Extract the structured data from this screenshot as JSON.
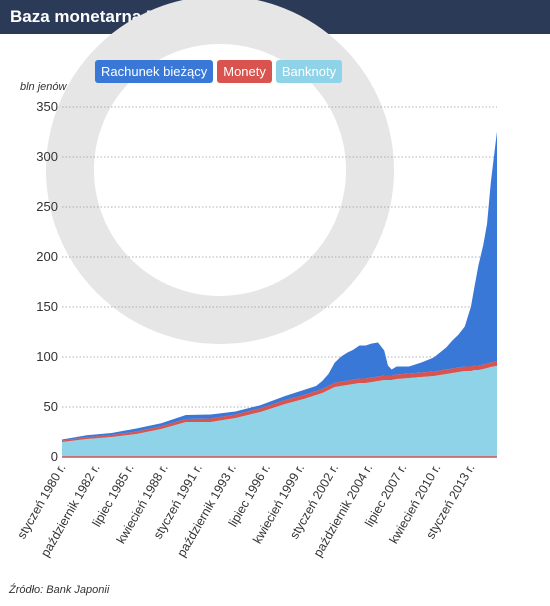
{
  "title": "Baza monetarna Banku Japonii",
  "source": "Źródło: Bank Japonii",
  "legend": [
    {
      "label": "Rachunek bieżący",
      "color": "#3a78d8"
    },
    {
      "label": "Monety",
      "color": "#d9534f"
    },
    {
      "label": "Banknoty",
      "color": "#8fd3e8"
    }
  ],
  "chart_data": {
    "type": "area",
    "stacked": true,
    "ylabel": "bln jenów",
    "ylim": [
      0,
      350
    ],
    "yticks": [
      0,
      50,
      100,
      150,
      200,
      250,
      300,
      350
    ],
    "grid": true,
    "legend_position": "top",
    "xlim": [
      1980.0,
      2015.1
    ],
    "xtick_positions": [
      1980.0,
      1982.75,
      1985.5,
      1988.25,
      1991.0,
      1993.75,
      1996.5,
      1999.25,
      2002.0,
      2004.75,
      2007.5,
      2010.25,
      2013.0
    ],
    "xtick_labels": [
      "styczeń 1980 r.",
      "październik 1982 r.",
      "lipiec 1985 r.",
      "kwiecień 1988 r.",
      "styczeń 1991 r.",
      "październik 1993 r.",
      "lipiec 1996 r.",
      "kwiecień 1999 r.",
      "styczeń 2002 r.",
      "październik 2004 r.",
      "lipiec 2007 r.",
      "kwiecień 2010 r.",
      "styczeń 2013 r."
    ],
    "x": [
      1980.0,
      1982.0,
      1984.0,
      1986.0,
      1988.0,
      1990.0,
      1992.0,
      1994.0,
      1996.0,
      1998.0,
      1999.5,
      2000.5,
      2001.0,
      2001.5,
      2002.0,
      2002.5,
      2003.0,
      2003.5,
      2004.0,
      2004.5,
      2005.0,
      2005.5,
      2006.0,
      2006.3,
      2006.6,
      2007.0,
      2008.0,
      2009.0,
      2010.0,
      2011.0,
      2011.5,
      2012.0,
      2012.5,
      2013.0,
      2013.3,
      2013.6,
      2014.0,
      2014.3,
      2014.6,
      2015.0,
      2015.1
    ],
    "series": [
      {
        "name": "Banknoty",
        "values": [
          15,
          18,
          20,
          23,
          28,
          35,
          35,
          39,
          45,
          53,
          58,
          62,
          64,
          67,
          70,
          71,
          72,
          73,
          74,
          74,
          75,
          76,
          77,
          77,
          77,
          78,
          79,
          80,
          81,
          83,
          84,
          85,
          86,
          86,
          87,
          87,
          88,
          89,
          90,
          91,
          91
        ]
      },
      {
        "name": "Monety",
        "values": [
          1.5,
          1.8,
          2,
          2.5,
          2.8,
          3,
          3.5,
          3.5,
          3.8,
          4,
          4,
          4,
          4,
          4,
          4.2,
          4.3,
          4.3,
          4.3,
          4.5,
          4.5,
          4.5,
          4.5,
          4.5,
          4.5,
          4.5,
          4.5,
          4.5,
          4.5,
          4.5,
          4.5,
          4.5,
          4.5,
          4.5,
          4.5,
          4.5,
          4.5,
          4.5,
          4.5,
          4.5,
          4.5,
          4.5
        ]
      },
      {
        "name": "Rachunek bieżący",
        "values": [
          1,
          2,
          2,
          3,
          3,
          4,
          4,
          3,
          3,
          4,
          5,
          5,
          8,
          12,
          20,
          25,
          28,
          30,
          33,
          33,
          34,
          34,
          25,
          10,
          6,
          8,
          7,
          10,
          14,
          22,
          28,
          33,
          40,
          60,
          80,
          100,
          120,
          140,
          180,
          220,
          230
        ]
      }
    ]
  }
}
